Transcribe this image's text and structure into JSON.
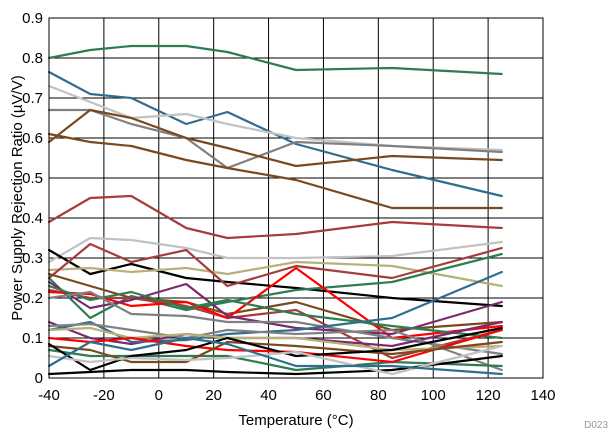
{
  "chart_data": {
    "type": "line",
    "xlabel": "Temperature (°C)",
    "ylabel": "Power Supply Rejection Ratio (µV/V)",
    "figure_tag": "D023",
    "xlim": [
      -40,
      140
    ],
    "ylim": [
      0,
      0.9
    ],
    "xticks": [
      -40,
      -20,
      0,
      20,
      40,
      60,
      80,
      100,
      120,
      140
    ],
    "yticks": [
      0,
      0.1,
      0.2,
      0.3,
      0.4,
      0.5,
      0.6,
      0.7,
      0.8,
      0.9
    ],
    "ytick_labels": [
      "0",
      "0.1",
      "0.2",
      "0.3",
      "0.4",
      "0.5",
      "0.6",
      "0.7",
      "0.8",
      "0.9"
    ],
    "grid": true,
    "x": [
      -40,
      -25,
      -10,
      10,
      25,
      50,
      85,
      125
    ],
    "series": [
      {
        "color": "#2e7d52",
        "values": [
          0.8,
          0.82,
          0.83,
          0.83,
          0.815,
          0.77,
          0.775,
          0.76
        ]
      },
      {
        "color": "#2f6e8e",
        "values": [
          0.765,
          0.71,
          0.7,
          0.635,
          0.665,
          0.585,
          0.52,
          0.455
        ]
      },
      {
        "color": "#c2c2c2",
        "values": [
          0.73,
          0.69,
          0.65,
          0.66,
          0.635,
          0.6,
          0.58,
          0.57
        ]
      },
      {
        "color": "#808080",
        "values": [
          0.67,
          0.67,
          0.635,
          0.6,
          0.525,
          0.59,
          0.58,
          0.565
        ]
      },
      {
        "color": "#7a4a1e",
        "values": [
          0.59,
          0.67,
          0.65,
          0.6,
          0.575,
          0.53,
          0.555,
          0.545
        ]
      },
      {
        "color": "#7a4a1e",
        "values": [
          0.61,
          0.59,
          0.58,
          0.545,
          0.525,
          0.495,
          0.425,
          0.425
        ]
      },
      {
        "color": "#a63c3c",
        "values": [
          0.39,
          0.45,
          0.455,
          0.375,
          0.35,
          0.36,
          0.39,
          0.375
        ]
      },
      {
        "color": "#c2c2c2",
        "values": [
          0.29,
          0.35,
          0.345,
          0.325,
          0.3,
          0.3,
          0.305,
          0.34
        ]
      },
      {
        "color": "#000000",
        "values": [
          0.32,
          0.26,
          0.285,
          0.25,
          0.24,
          0.225,
          0.2,
          0.18
        ]
      },
      {
        "color": "#b7b078",
        "values": [
          0.27,
          0.275,
          0.265,
          0.275,
          0.26,
          0.29,
          0.28,
          0.23
        ]
      },
      {
        "color": "#a63c3c",
        "values": [
          0.25,
          0.335,
          0.29,
          0.32,
          0.23,
          0.28,
          0.25,
          0.325
        ]
      },
      {
        "color": "#2e7d52",
        "values": [
          0.25,
          0.15,
          0.205,
          0.17,
          0.19,
          0.22,
          0.24,
          0.31
        ]
      },
      {
        "color": "#7a4a1e",
        "values": [
          0.26,
          0.23,
          0.2,
          0.19,
          0.16,
          0.19,
          0.12,
          0.14
        ]
      },
      {
        "color": "#a63c3c",
        "values": [
          0.22,
          0.2,
          0.2,
          0.18,
          0.15,
          0.17,
          0.05,
          0.12
        ]
      },
      {
        "color": "#ff0000",
        "values": [
          0.215,
          0.21,
          0.18,
          0.19,
          0.15,
          0.275,
          0.1,
          0.13
        ]
      },
      {
        "color": "#7a2a6e",
        "values": [
          0.24,
          0.175,
          0.195,
          0.235,
          0.155,
          0.125,
          0.11,
          0.19
        ]
      },
      {
        "color": "#2e7d52",
        "values": [
          0.23,
          0.195,
          0.215,
          0.175,
          0.195,
          0.16,
          0.13,
          0.1
        ]
      },
      {
        "color": "#808080",
        "values": [
          0.2,
          0.215,
          0.16,
          0.155,
          0.14,
          0.14,
          0.1,
          0.06
        ]
      },
      {
        "color": "#7a2a6e",
        "values": [
          0.14,
          0.1,
          0.085,
          0.11,
          0.1,
          0.1,
          0.08,
          0.14
        ]
      },
      {
        "color": "#2f6e8e",
        "values": [
          0.12,
          0.14,
          0.09,
          0.095,
          0.11,
          0.12,
          0.15,
          0.265
        ]
      },
      {
        "color": "#808080",
        "values": [
          0.13,
          0.135,
          0.12,
          0.1,
          0.12,
          0.11,
          0.12,
          0.02
        ]
      },
      {
        "color": "#b7b078",
        "values": [
          0.12,
          0.125,
          0.1,
          0.11,
          0.1,
          0.1,
          0.07,
          0.08
        ]
      },
      {
        "color": "#2e7d52",
        "values": [
          0.07,
          0.055,
          0.055,
          0.055,
          0.055,
          0.02,
          0.04,
          0.03
        ]
      },
      {
        "color": "#ff0000",
        "values": [
          0.1,
          0.09,
          0.1,
          0.08,
          0.07,
          0.065,
          0.04,
          0.12
        ]
      },
      {
        "color": "#7a4a1e",
        "values": [
          0.08,
          0.07,
          0.04,
          0.04,
          0.09,
          0.08,
          0.06,
          0.09
        ]
      },
      {
        "color": "#000000",
        "values": [
          0.085,
          0.02,
          0.055,
          0.07,
          0.1,
          0.055,
          0.07,
          0.125
        ]
      },
      {
        "color": "#000000",
        "values": [
          0.01,
          0.015,
          0.02,
          0.02,
          0.015,
          0.01,
          0.02,
          0.055
        ]
      },
      {
        "color": "#c2c2c2",
        "values": [
          0.055,
          0.04,
          0.05,
          0.045,
          0.05,
          0.065,
          0.01,
          0.08
        ]
      },
      {
        "color": "#2f6e8e",
        "values": [
          0.03,
          0.09,
          0.07,
          0.1,
          0.085,
          0.03,
          0.03,
          0.01
        ]
      }
    ]
  }
}
